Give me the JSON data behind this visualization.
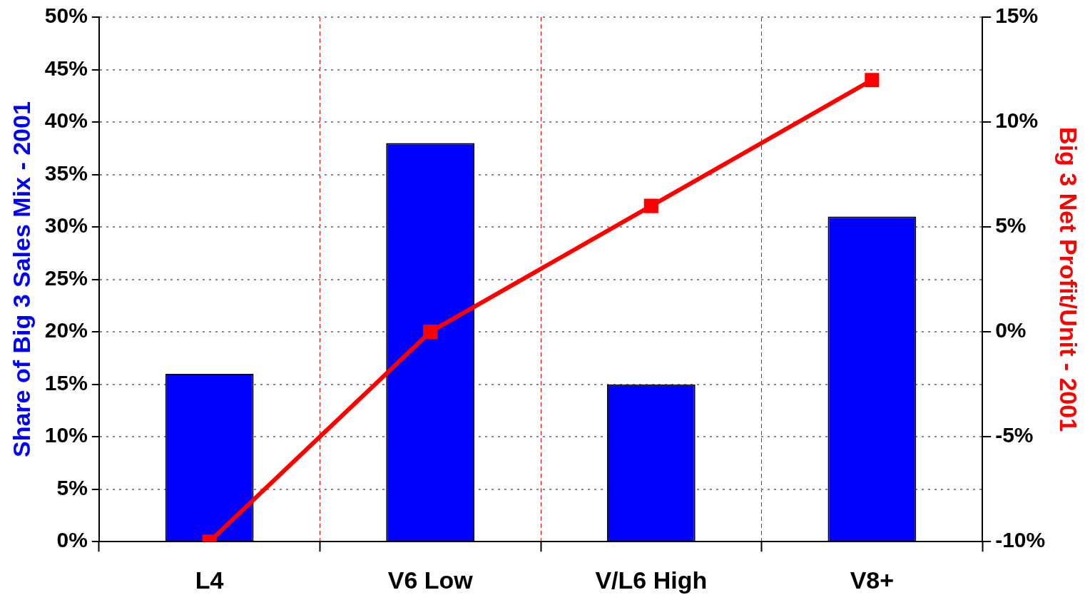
{
  "chart_data": {
    "type": "bar",
    "categories": [
      "L4",
      "V6 Low",
      "V/L6 High",
      "V8+"
    ],
    "series": [
      {
        "color": "#0000ff",
        "values": [
          16,
          38,
          15,
          31
        ]
      },
      {
        "type": "line",
        "axis": "y2",
        "color": "#ff0000",
        "values": [
          -10,
          0,
          6,
          12
        ]
      }
    ],
    "ylabel": "Share of Big 3 Sales Mix - 2001",
    "y2label": "Big 3 Net Profit/Unit - 2001",
    "ylim": [
      0,
      50
    ],
    "yticks": [
      {
        "value": 0,
        "label": "0%"
      },
      {
        "value": 5,
        "label": "5%"
      },
      {
        "value": 10,
        "label": "10%"
      },
      {
        "value": 15,
        "label": "15%"
      },
      {
        "value": 20,
        "label": "20%"
      },
      {
        "value": 25,
        "label": "25%"
      },
      {
        "value": 30,
        "label": "30%"
      },
      {
        "value": 35,
        "label": "35%"
      },
      {
        "value": 40,
        "label": "40%"
      },
      {
        "value": 45,
        "label": "45%"
      },
      {
        "value": 50,
        "label": "50%"
      }
    ],
    "y2lim": [
      -10,
      15
    ],
    "y2ticks": [
      {
        "value": -10,
        "label": "-10%"
      },
      {
        "value": -5,
        "label": "-5%"
      },
      {
        "value": 0,
        "label": "0%"
      },
      {
        "value": 5,
        "label": "5%"
      },
      {
        "value": 10,
        "label": "10%"
      },
      {
        "value": 15,
        "label": "15%"
      }
    ],
    "grid": true,
    "legend": false,
    "marker": "square",
    "line_style": "solid"
  }
}
